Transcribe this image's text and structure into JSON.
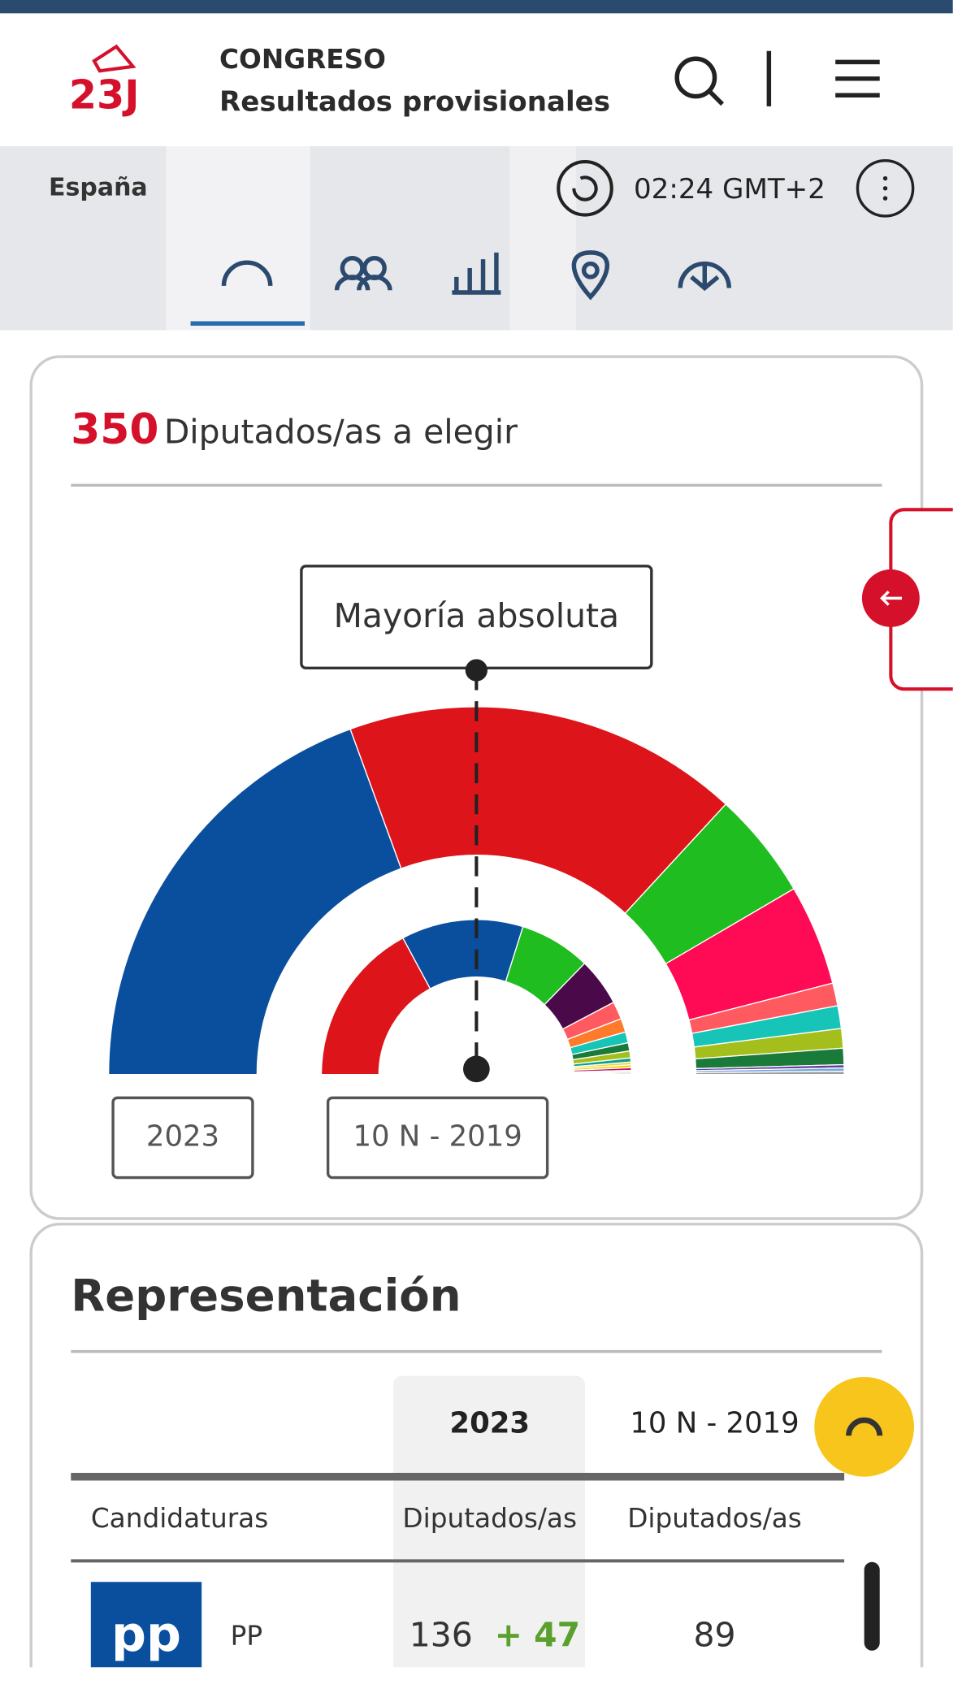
{
  "header": {
    "logo": "23J",
    "title": "CONGRESO",
    "subtitle": "Resultados provisionales"
  },
  "toolbar": {
    "region": "España",
    "time": "02:24 GMT+2"
  },
  "summary": {
    "seats": 350,
    "label": "Diputados/as a elegir"
  },
  "hemicycle": {
    "annotation": "Mayoría absoluta",
    "outer": {
      "label": "2023",
      "values": [
        136,
        122,
        33,
        31,
        7,
        7,
        6,
        5,
        1,
        1,
        1
      ],
      "colors": [
        "#0a4f9e",
        "#dd141a",
        "#1fbd1f",
        "#ff0a54",
        "#ff5a5f",
        "#16c4b8",
        "#a4be1c",
        "#1a7a3a",
        "#6a3d9a",
        "#6fa8dc",
        "#9e9e9e"
      ]
    },
    "inner": {
      "label": "10 N - 2019",
      "values": [
        120,
        89,
        52,
        35,
        13,
        10,
        8,
        6,
        5,
        3,
        2,
        2,
        2,
        1,
        1,
        1
      ],
      "colors": [
        "#dd141a",
        "#0a4f9e",
        "#1fbd1f",
        "#4a0a4a",
        "#ff5a5f",
        "#ff7a2a",
        "#16c4b8",
        "#1a7a3a",
        "#a4be1c",
        "#0ea08c",
        "#f5d327",
        "#e8d000",
        "#c2185b",
        "#6fa8dc",
        "#9ccc65",
        "#795548"
      ]
    }
  },
  "table": {
    "title": "Representación",
    "columns": [
      "2023",
      "10 N - 2019"
    ],
    "header": [
      "Candidaturas",
      "Diputados/as",
      "Diputados/as"
    ],
    "rows": [
      {
        "logo": "pp",
        "name": "PP",
        "seats": 136,
        "change": "+ 47",
        "prev": 89
      }
    ]
  }
}
